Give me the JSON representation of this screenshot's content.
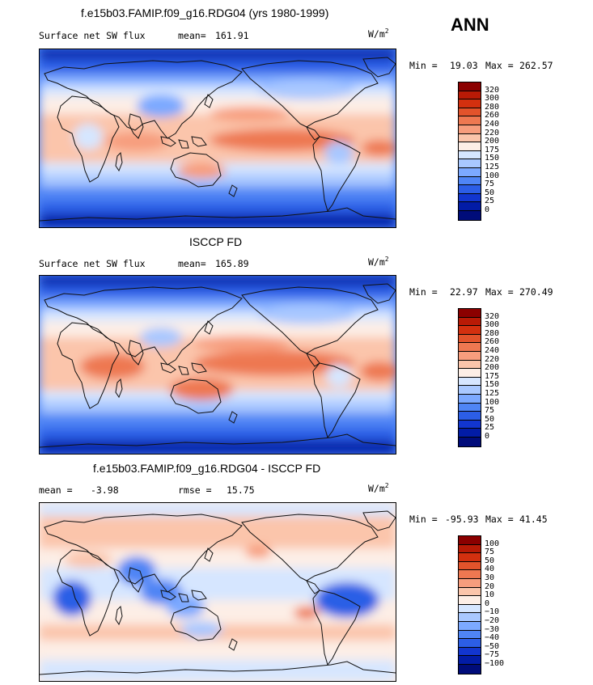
{
  "season": "ANN",
  "units_base": "W/m",
  "units_exp": "2",
  "panels": [
    {
      "title": "f.e15b03.FAMIP.f09_g16.RDG04 (yrs 1980-1999)",
      "left_label": "Surface net SW flux",
      "stat_label": "mean=",
      "stat_value": "161.91",
      "minmax_min_label": "Min =",
      "min": "19.03",
      "minmax_max_label": "Max =",
      "max": "262.57",
      "levels": [
        "320",
        "300",
        "280",
        "260",
        "240",
        "220",
        "200",
        "175",
        "150",
        "125",
        "100",
        "75",
        "50",
        "25",
        "0"
      ],
      "colors": [
        "#8b0000",
        "#b81a06",
        "#d3300f",
        "#e2532b",
        "#ee7851",
        "#f79d7d",
        "#fbc5ab",
        "#fdeee6",
        "#d6e6ff",
        "#a9c8ff",
        "#7ca9ff",
        "#4f85f5",
        "#2c5ee6",
        "#1236cf",
        "#021ca6",
        "#000c7a"
      ]
    },
    {
      "title": "ISCCP FD",
      "left_label": "Surface net SW flux",
      "stat_label": "mean=",
      "stat_value": "165.89",
      "minmax_min_label": "Min =",
      "min": "22.97",
      "minmax_max_label": "Max =",
      "max": "270.49",
      "levels": [
        "320",
        "300",
        "280",
        "260",
        "240",
        "220",
        "200",
        "175",
        "150",
        "125",
        "100",
        "75",
        "50",
        "25",
        "0"
      ],
      "colors": [
        "#8b0000",
        "#b81a06",
        "#d3300f",
        "#e2532b",
        "#ee7851",
        "#f79d7d",
        "#fbc5ab",
        "#fdeee6",
        "#d6e6ff",
        "#a9c8ff",
        "#7ca9ff",
        "#4f85f5",
        "#2c5ee6",
        "#1236cf",
        "#021ca6",
        "#000c7a"
      ]
    },
    {
      "title": "f.e15b03.FAMIP.f09_g16.RDG04 - ISCCP FD",
      "left_label": "mean =",
      "left_value": "-3.98",
      "stat_label": "rmse =",
      "stat_value": "15.75",
      "minmax_min_label": "Min =",
      "min": "-95.93",
      "minmax_max_label": "Max =",
      "max": "41.45",
      "levels": [
        "100",
        "75",
        "50",
        "40",
        "30",
        "20",
        "10",
        "0",
        "−10",
        "−20",
        "−30",
        "−40",
        "−50",
        "−75",
        "−100"
      ],
      "colors": [
        "#8b0000",
        "#b81a06",
        "#d3300f",
        "#e2532b",
        "#ee7851",
        "#f79d7d",
        "#fbc5ab",
        "#fdeee6",
        "#d6e6ff",
        "#a9c8ff",
        "#7ca9ff",
        "#4f85f5",
        "#2c5ee6",
        "#1236cf",
        "#021ca6",
        "#000c7a"
      ]
    }
  ]
}
